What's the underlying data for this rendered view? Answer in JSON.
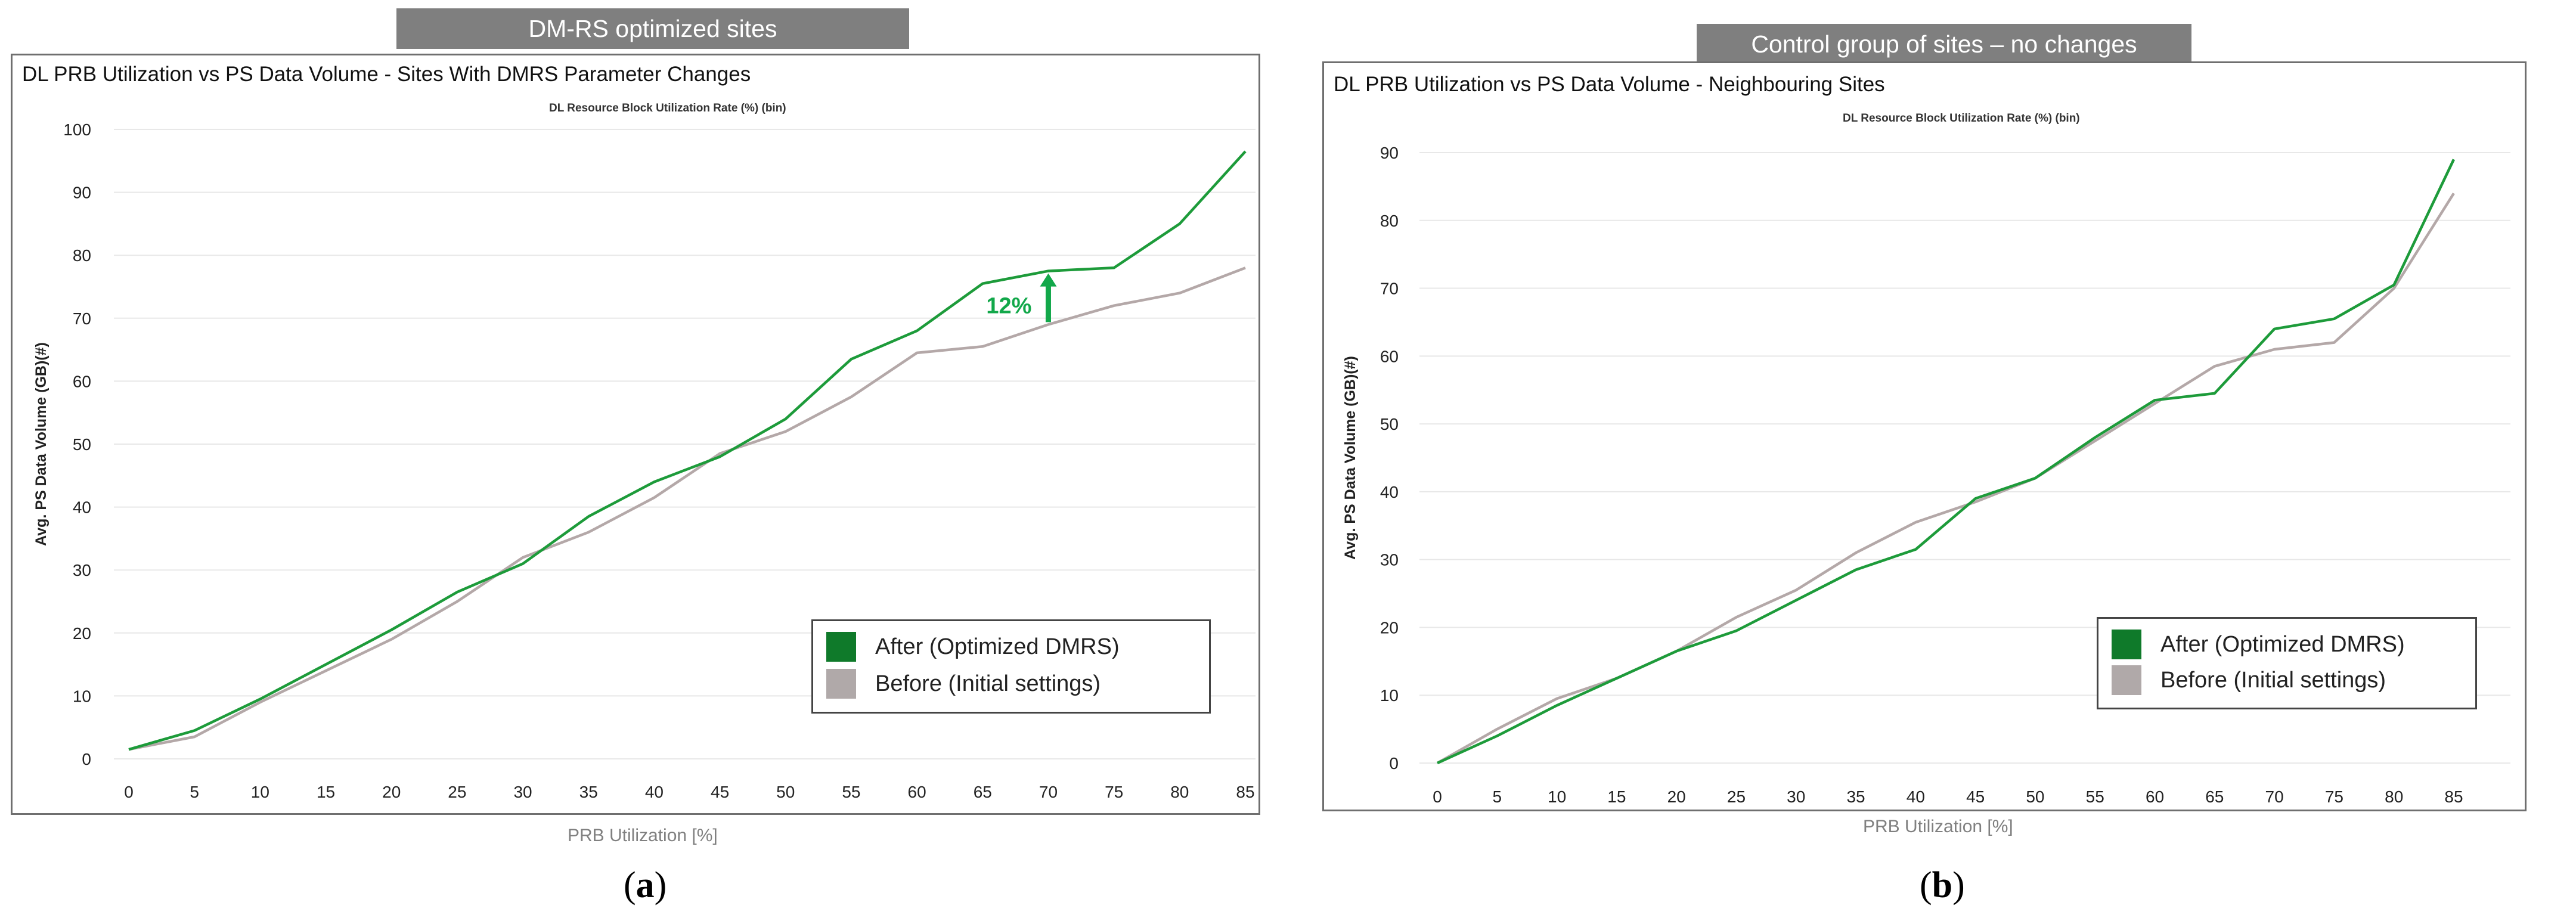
{
  "colors": {
    "after": "#1d9b3a",
    "before": "#b4a8a8",
    "after_swatch": "#0f7a2a",
    "before_swatch": "#b0a9a9",
    "annotation": "#12a84a",
    "grid": "#e8e8e8"
  },
  "panel_a": {
    "banner": "DM-RS optimized sites",
    "caption_letter": "a"
  },
  "panel_b": {
    "banner": "Control group of sites – no changes",
    "caption_letter": "b"
  },
  "chart_data": [
    {
      "type": "line",
      "title": "DL PRB Utilization vs PS Data Volume - Sites With DMRS Parameter Changes",
      "subtitle": "DL Resource Block Utilization Rate (%) (bin)",
      "xlabel": "PRB Utilization [%]",
      "ylabel": "Avg. PS Data Volume (GB)(#)",
      "x": [
        0,
        5,
        10,
        15,
        20,
        25,
        30,
        35,
        40,
        45,
        50,
        55,
        60,
        65,
        70,
        75,
        80,
        85
      ],
      "ylim": [
        0,
        100
      ],
      "yticks": [
        0,
        10,
        20,
        30,
        40,
        50,
        60,
        70,
        80,
        90,
        100
      ],
      "grid": true,
      "legend_position": "bottom-right",
      "series": [
        {
          "name": "After (Optimized DMRS)",
          "values": [
            1.5,
            4.5,
            9.5,
            15,
            20.5,
            26.5,
            31,
            38.5,
            44,
            48,
            54,
            63.5,
            68,
            75.5,
            77.5,
            78,
            85,
            96.5
          ]
        },
        {
          "name": "Before (Initial settings)",
          "values": [
            1.5,
            3.5,
            9,
            14,
            19,
            25,
            32,
            36,
            41.5,
            48.5,
            52,
            57.5,
            64.5,
            65.5,
            69,
            72,
            74,
            78
          ]
        }
      ],
      "annotation": {
        "text": "12%",
        "x": 70,
        "y_from": 69,
        "y_to": 77.5
      }
    },
    {
      "type": "line",
      "title": "DL PRB Utilization vs PS Data Volume - Neighbouring Sites",
      "subtitle": "DL Resource Block Utilization Rate (%) (bin)",
      "xlabel": "PRB Utilization [%]",
      "ylabel": "Avg. PS Data Volume (GB)(#)",
      "x": [
        0,
        5,
        10,
        15,
        20,
        25,
        30,
        35,
        40,
        45,
        50,
        55,
        60,
        65,
        70,
        75,
        80,
        85
      ],
      "ylim": [
        0,
        90
      ],
      "yticks": [
        0,
        10,
        20,
        30,
        40,
        50,
        60,
        70,
        80,
        90
      ],
      "grid": true,
      "legend_position": "bottom-right",
      "series": [
        {
          "name": "After (Optimized DMRS)",
          "values": [
            0,
            4,
            8.5,
            12.5,
            16.5,
            19.5,
            24,
            28.5,
            31.5,
            39,
            42,
            48,
            53.5,
            54.5,
            64,
            65.5,
            70.5,
            89
          ]
        },
        {
          "name": "Before (Initial settings)",
          "values": [
            0,
            5,
            9.5,
            12.5,
            16.5,
            21.5,
            25.5,
            31,
            35.5,
            38.5,
            42,
            47.5,
            53,
            58.5,
            61,
            62,
            70,
            84
          ]
        }
      ]
    }
  ]
}
